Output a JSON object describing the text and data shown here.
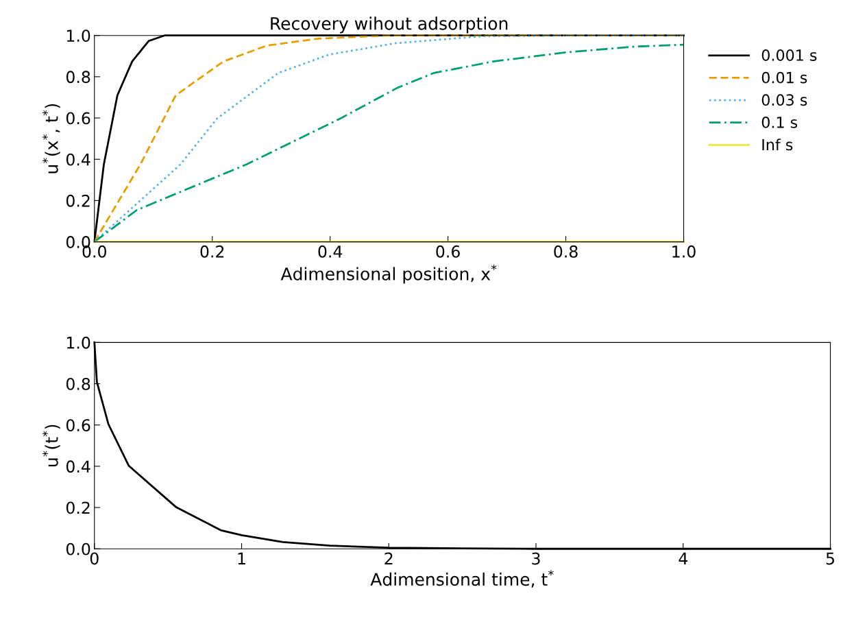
{
  "chart_data": [
    {
      "type": "line",
      "title": "Recovery wihout adsorption",
      "xlabel": "Adimensional position, x$^{*}$",
      "ylabel": "u$^{*}$(x$^{*}$, t$^{*}$)",
      "xlim": [
        0,
        1
      ],
      "ylim": [
        0,
        1
      ],
      "xticks": [
        {
          "value": 0,
          "label": "0.0"
        },
        {
          "value": 0.2,
          "label": "0.2"
        },
        {
          "value": 0.4,
          "label": "0.4"
        },
        {
          "value": 0.6,
          "label": "0.6"
        },
        {
          "value": 0.8,
          "label": "0.8"
        },
        {
          "value": 1,
          "label": "1.0"
        }
      ],
      "yticks": [
        {
          "value": 0,
          "label": "0.0"
        },
        {
          "value": 0.2,
          "label": "0.2"
        },
        {
          "value": 0.4,
          "label": "0.4"
        },
        {
          "value": 0.6,
          "label": "0.6"
        },
        {
          "value": 0.8,
          "label": "0.8"
        },
        {
          "value": 1,
          "label": "1.0"
        }
      ],
      "grid": false,
      "legend": "right",
      "series": [
        {
          "name": "0.001 s",
          "color": "#000000",
          "line_style": "solid",
          "x": [
            0,
            0.016,
            0.039,
            0.064,
            0.092,
            0.119,
            0.2,
            1
          ],
          "values": [
            0,
            0.375,
            0.71,
            0.874,
            0.973,
            1.0,
            1.0,
            1.0
          ]
        },
        {
          "name": "0.01 s",
          "color": "#e69f00",
          "line_style": "dashed",
          "x": [
            0,
            0.078,
            0.138,
            0.219,
            0.293,
            0.378,
            0.5,
            1
          ],
          "values": [
            0,
            0.375,
            0.71,
            0.874,
            0.951,
            0.984,
            1.0,
            1.0
          ]
        },
        {
          "name": "0.03 s",
          "color": "#56b4e9",
          "line_style": "dotted",
          "x": [
            0,
            0.146,
            0.208,
            0.312,
            0.398,
            0.51,
            0.657,
            0.8,
            1
          ],
          "values": [
            0,
            0.375,
            0.597,
            0.818,
            0.907,
            0.962,
            0.996,
            1.0,
            1.0
          ]
        },
        {
          "name": "0.1 s",
          "color": "#009e73",
          "line_style": "dashdot",
          "x": [
            0,
            0.072,
            0.258,
            0.417,
            0.514,
            0.576,
            0.677,
            0.8,
            0.917,
            1
          ],
          "values": [
            0,
            0.154,
            0.375,
            0.597,
            0.746,
            0.818,
            0.874,
            0.918,
            0.946,
            0.955
          ]
        },
        {
          "name": "Inf s",
          "color": "#f0e442",
          "line_style": "solid",
          "x": [
            0,
            1
          ],
          "values": [
            0,
            0
          ]
        }
      ]
    },
    {
      "type": "line",
      "xlabel": "Adimensional time, t$^{*}$",
      "ylabel": "u$^{*}$(t$^{*}$)",
      "xlim": [
        0,
        5
      ],
      "ylim": [
        0,
        1
      ],
      "xticks": [
        0,
        1,
        2,
        3,
        4,
        5
      ],
      "yticks": [
        {
          "value": 0,
          "label": "0.0"
        },
        {
          "value": 0.2,
          "label": "0.2"
        },
        {
          "value": 0.4,
          "label": "0.4"
        },
        {
          "value": 0.6,
          "label": "0.6"
        },
        {
          "value": 0.8,
          "label": "0.8"
        },
        {
          "value": 1,
          "label": "1.0"
        }
      ],
      "grid": false,
      "series": [
        {
          "color": "#000000",
          "line_style": "solid",
          "x": [
            0,
            0.017,
            0.095,
            0.234,
            0.553,
            0.862,
            1,
            1.28,
            1.6,
            2,
            2.5,
            3,
            4,
            5
          ],
          "values": [
            1.0,
            0.808,
            0.604,
            0.402,
            0.203,
            0.089,
            0.066,
            0.033,
            0.015,
            0.005,
            0.002,
            0.0,
            0.0,
            0.0
          ]
        }
      ]
    }
  ]
}
